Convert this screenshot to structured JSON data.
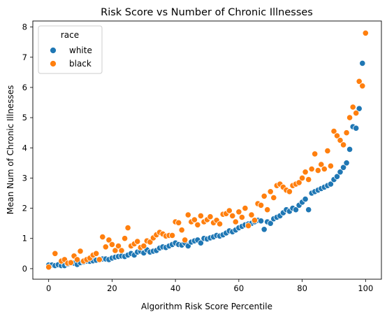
{
  "chart_data": {
    "type": "scatter",
    "title": "Risk Score vs Number of Chronic Illnesses",
    "xlabel": "Algorithm Risk Score Percentile",
    "ylabel": "Mean Num of Chronic Illnesses",
    "xlim": [
      -5,
      105
    ],
    "ylim": [
      -0.35,
      8.2
    ],
    "xticks": [
      0,
      20,
      40,
      60,
      80,
      100
    ],
    "yticks": [
      0,
      1,
      2,
      3,
      4,
      5,
      6,
      7,
      8
    ],
    "grid": false,
    "legend": {
      "title": "race",
      "placement": "top-left"
    },
    "series": [
      {
        "name": "white",
        "color": "#1f77b4",
        "x": [
          0,
          1,
          2,
          3,
          4,
          5,
          6,
          7,
          8,
          9,
          10,
          11,
          12,
          13,
          14,
          15,
          16,
          17,
          18,
          19,
          20,
          21,
          22,
          23,
          24,
          25,
          26,
          27,
          28,
          29,
          30,
          31,
          32,
          33,
          34,
          35,
          36,
          37,
          38,
          39,
          40,
          41,
          42,
          43,
          44,
          45,
          46,
          47,
          48,
          49,
          50,
          51,
          52,
          53,
          54,
          55,
          56,
          57,
          58,
          59,
          60,
          61,
          62,
          63,
          64,
          65,
          66,
          67,
          68,
          69,
          70,
          71,
          72,
          73,
          74,
          75,
          76,
          77,
          78,
          79,
          80,
          81,
          82,
          83,
          84,
          85,
          86,
          87,
          88,
          89,
          90,
          91,
          92,
          93,
          94,
          95,
          96,
          97,
          98,
          99
        ],
        "y": [
          0.12,
          0.12,
          0.1,
          0.13,
          0.1,
          0.1,
          0.15,
          0.2,
          0.18,
          0.14,
          0.2,
          0.22,
          0.25,
          0.24,
          0.26,
          0.28,
          0.3,
          0.32,
          0.32,
          0.3,
          0.35,
          0.38,
          0.4,
          0.42,
          0.4,
          0.45,
          0.5,
          0.45,
          0.55,
          0.58,
          0.52,
          0.62,
          0.55,
          0.58,
          0.6,
          0.68,
          0.72,
          0.7,
          0.75,
          0.8,
          0.85,
          0.8,
          0.78,
          0.85,
          0.75,
          0.88,
          0.92,
          0.95,
          0.85,
          1.0,
          0.98,
          1.02,
          1.05,
          1.1,
          1.08,
          1.12,
          1.18,
          1.25,
          1.22,
          1.28,
          1.35,
          1.4,
          1.45,
          1.48,
          1.5,
          1.55,
          1.6,
          1.58,
          1.3,
          1.55,
          1.5,
          1.65,
          1.7,
          1.75,
          1.85,
          1.95,
          1.9,
          2.0,
          1.95,
          2.1,
          2.2,
          2.3,
          1.95,
          2.5,
          2.55,
          2.6,
          2.65,
          2.7,
          2.75,
          2.8,
          2.95,
          3.05,
          3.2,
          3.35,
          3.5,
          3.95,
          4.7,
          4.65,
          5.3,
          6.8
        ]
      },
      {
        "name": "black",
        "color": "#ff7f0e",
        "x": [
          0,
          2,
          4,
          5,
          6,
          7,
          8,
          9,
          10,
          11,
          12,
          13,
          14,
          15,
          16,
          17,
          18,
          19,
          20,
          21,
          22,
          23,
          24,
          25,
          26,
          27,
          28,
          29,
          30,
          31,
          32,
          33,
          34,
          35,
          36,
          37,
          38,
          39,
          40,
          41,
          42,
          43,
          44,
          45,
          46,
          47,
          48,
          49,
          50,
          51,
          52,
          53,
          54,
          55,
          56,
          57,
          58,
          59,
          60,
          61,
          62,
          63,
          64,
          65,
          66,
          67,
          68,
          69,
          70,
          71,
          72,
          73,
          74,
          75,
          76,
          77,
          78,
          79,
          80,
          81,
          82,
          83,
          84,
          85,
          86,
          87,
          88,
          89,
          90,
          91,
          92,
          93,
          94,
          95,
          96,
          97,
          98,
          99,
          100
        ],
        "y": [
          0.05,
          0.5,
          0.25,
          0.3,
          0.18,
          0.2,
          0.42,
          0.3,
          0.58,
          0.25,
          0.3,
          0.35,
          0.45,
          0.5,
          0.3,
          1.05,
          0.72,
          0.95,
          0.8,
          0.6,
          0.75,
          0.6,
          1.0,
          1.35,
          0.75,
          0.82,
          0.9,
          0.7,
          0.75,
          0.92,
          0.88,
          1.02,
          1.12,
          1.2,
          1.15,
          1.08,
          1.1,
          1.1,
          1.55,
          1.52,
          1.28,
          0.95,
          1.78,
          1.55,
          1.62,
          1.45,
          1.75,
          1.55,
          1.62,
          1.72,
          1.52,
          1.6,
          1.48,
          1.8,
          1.82,
          1.92,
          1.75,
          1.55,
          1.88,
          1.7,
          2.0,
          1.42,
          1.78,
          1.6,
          2.15,
          2.1,
          2.4,
          1.95,
          2.55,
          2.35,
          2.75,
          2.8,
          2.7,
          2.6,
          2.55,
          2.75,
          2.8,
          2.85,
          3.0,
          3.2,
          2.95,
          3.3,
          3.8,
          3.25,
          3.45,
          3.3,
          3.9,
          3.4,
          4.55,
          4.4,
          4.25,
          4.1,
          4.5,
          5.0,
          5.35,
          5.15,
          6.2,
          6.05,
          7.8
        ]
      }
    ]
  }
}
